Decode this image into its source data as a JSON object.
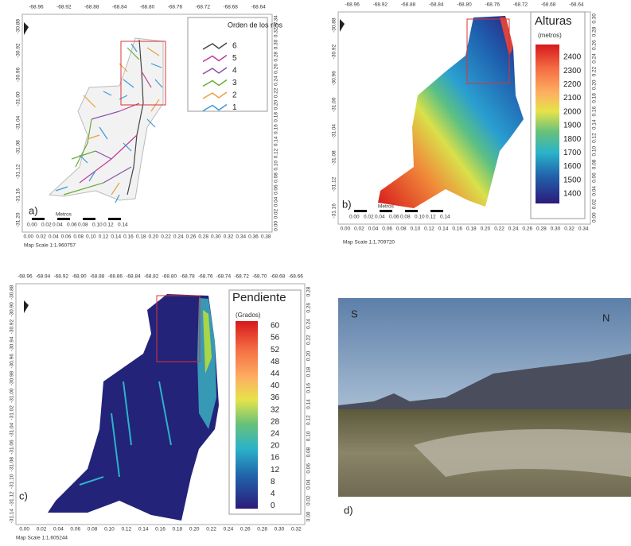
{
  "panels": [
    {
      "label": "a)",
      "scale": "Map Scale 1:1.960757",
      "top_axis": [
        "-68.96",
        "-68.92",
        "-68.88",
        "-68.84",
        "-68.80",
        "-68.76",
        "-68.72",
        "-68.68",
        "-68.64"
      ],
      "left_axis": [
        "-30.88",
        "-30.92",
        "-30.96",
        "-31.00",
        "-31.04",
        "-31.08",
        "-31.12",
        "-31.16",
        "-31.20"
      ],
      "right_axis": [
        "0.34",
        "0.32",
        "0.30",
        "0.28",
        "0.26",
        "0.24",
        "0.22",
        "0.20",
        "0.18",
        "0.16",
        "0.14",
        "0.12",
        "0.10",
        "0.08",
        "0.06",
        "0.04",
        "0.02",
        "0.00"
      ],
      "bottom_axis": [
        "0.00",
        "0.02",
        "0.04",
        "0.06",
        "0.08",
        "0.10",
        "0.12",
        "0.14",
        "0.16",
        "0.18",
        "0.20",
        "0.22",
        "0.24",
        "0.26",
        "0.28",
        "0.30",
        "0.32",
        "0.34",
        "0.36",
        "0.38"
      ],
      "scale_bar": {
        "title": "Metros",
        "labels": [
          "0.00",
          "0.02",
          "0.04",
          "0.06",
          "0.08",
          "0.10",
          "0.12",
          "0.14"
        ]
      },
      "legend": {
        "title": "Orden de los ríos",
        "items": [
          "6",
          "5",
          "4",
          "3",
          "2",
          "1"
        ]
      }
    },
    {
      "label": "b)",
      "scale": "Map Scale 1:1.709720",
      "top_axis": [
        "-68.96",
        "-68.92",
        "-68.88",
        "-68.84",
        "-68.80",
        "-68.76",
        "-68.72",
        "-68.68",
        "-68.64"
      ],
      "left_axis": [
        "-30.88",
        "-30.92",
        "-30.96",
        "-31.00",
        "-31.04",
        "-31.08",
        "-31.12",
        "-31.16"
      ],
      "right_axis": [
        "0.30",
        "0.28",
        "0.26",
        "0.24",
        "0.22",
        "0.20",
        "0.18",
        "0.16",
        "0.14",
        "0.12",
        "0.10",
        "0.08",
        "0.06",
        "0.04",
        "0.02",
        "0.00"
      ],
      "bottom_axis": [
        "0.00",
        "0.02",
        "0.04",
        "0.06",
        "0.08",
        "0.10",
        "0.12",
        "0.14",
        "0.16",
        "0.18",
        "0.20",
        "0.22",
        "0.24",
        "0.26",
        "0.28",
        "0.30",
        "0.32",
        "0.34"
      ],
      "scale_bar": {
        "title": "Metros",
        "labels": [
          "0.00",
          "0.02",
          "0.04",
          "0.06",
          "0.08",
          "0.10",
          "0.12",
          "0.14"
        ]
      },
      "legend": {
        "title": "Alturas",
        "subtitle": "(metros)",
        "items": [
          "2400",
          "2300",
          "2200",
          "2100",
          "2000",
          "1900",
          "1800",
          "1700",
          "1600",
          "1500",
          "1400"
        ]
      }
    },
    {
      "label": "c)",
      "scale": "Map Scale 1:1.605244",
      "top_axis": [
        "-68.96",
        "-68.94",
        "-68.92",
        "-68.90",
        "-68.88",
        "-68.86",
        "-68.84",
        "-68.82",
        "-68.80",
        "-68.78",
        "-68.76",
        "-68.74",
        "-68.72",
        "-68.70",
        "-68.68",
        "-68.66"
      ],
      "left_axis": [
        "-30.88",
        "-30.90",
        "-30.92",
        "-30.94",
        "-30.96",
        "-30.98",
        "-31.00",
        "-31.02",
        "-31.04",
        "-31.06",
        "-31.08",
        "-31.10",
        "-31.12",
        "-31.14"
      ],
      "right_axis": [
        "0.28",
        "0.26",
        "0.24",
        "0.22",
        "0.20",
        "0.18",
        "0.16",
        "0.14",
        "0.12",
        "0.10",
        "0.08",
        "0.06",
        "0.04",
        "0.02",
        "0.00"
      ],
      "bottom_axis": [
        "0.00",
        "0.02",
        "0.04",
        "0.06",
        "0.08",
        "0.10",
        "0.12",
        "0.14",
        "0.16",
        "0.18",
        "0.20",
        "0.22",
        "0.24",
        "0.26",
        "0.28",
        "0.30",
        "0.32"
      ],
      "legend": {
        "title": "Pendiente",
        "subtitle": "(Grados)",
        "items": [
          "60",
          "56",
          "52",
          "48",
          "44",
          "40",
          "36",
          "32",
          "28",
          "24",
          "20",
          "16",
          "12",
          "8",
          "4",
          "0"
        ]
      }
    }
  ],
  "photo": {
    "label": "d)",
    "left": "S",
    "right": "N"
  }
}
